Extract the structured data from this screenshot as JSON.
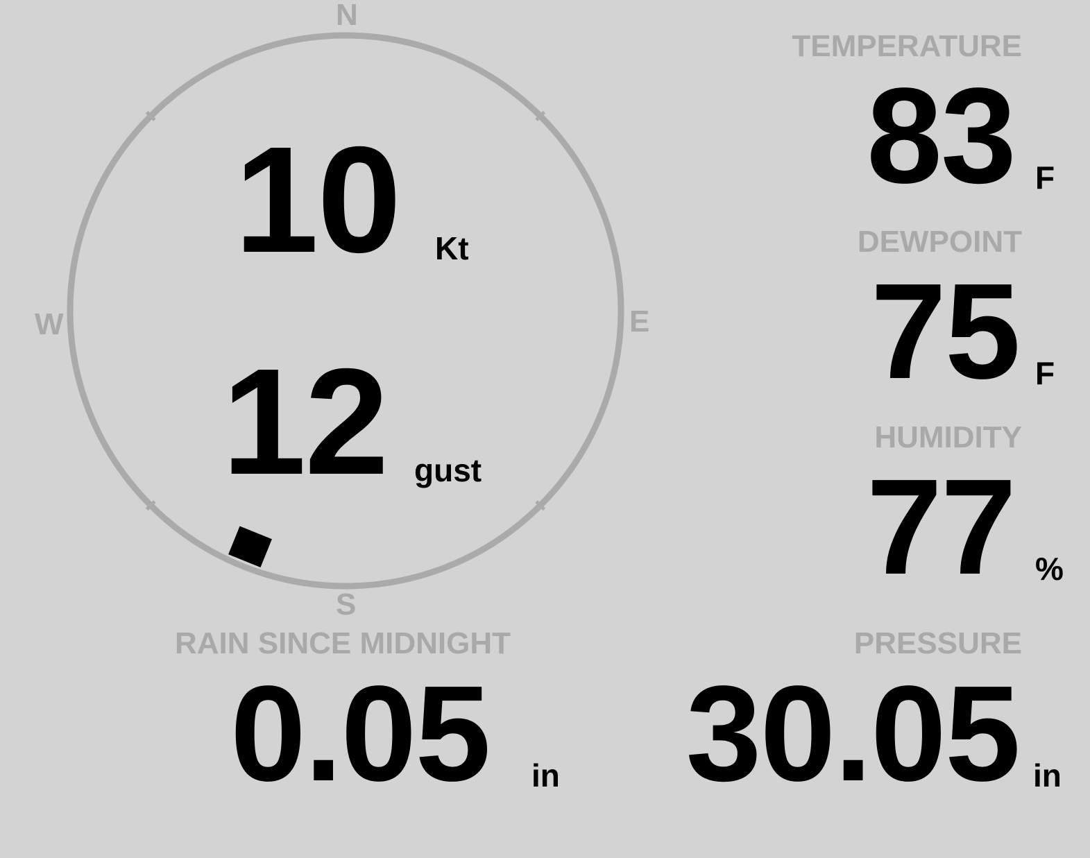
{
  "compass": {
    "north": "N",
    "south": "S",
    "east": "E",
    "west": "W",
    "wind_direction_deg": 202,
    "ring_color": "#aaaaaa",
    "marker_color": "#000000"
  },
  "wind": {
    "speed": "10",
    "speed_unit": "Kt",
    "gust": "12",
    "gust_unit": "gust"
  },
  "temperature": {
    "label": "TEMPERATURE",
    "value": "83",
    "unit": "F"
  },
  "dewpoint": {
    "label": "DEWPOINT",
    "value": "75",
    "unit": "F"
  },
  "humidity": {
    "label": "HUMIDITY",
    "value": "77",
    "unit": "%"
  },
  "rain": {
    "label": "RAIN SINCE MIDNIGHT",
    "value": "0.05",
    "unit": "in"
  },
  "pressure": {
    "label": "PRESSURE",
    "value": "30.05",
    "unit": "in"
  },
  "colors": {
    "background": "#d3d3d3",
    "label": "#a9a9a9",
    "value": "#000000"
  }
}
